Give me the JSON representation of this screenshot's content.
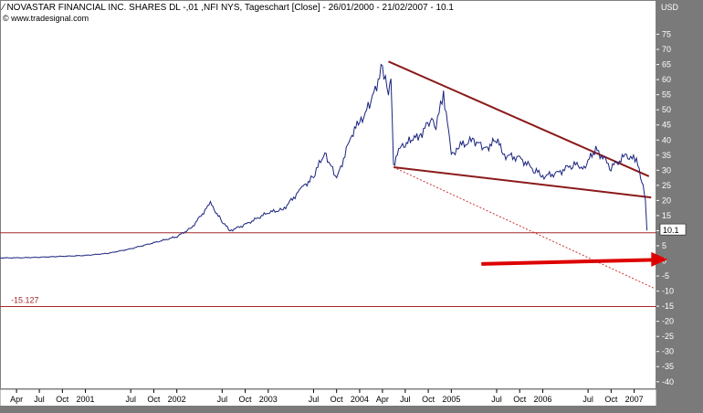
{
  "header": {
    "icon": "chart-line-icon",
    "title": "NOVASTAR FINANCIAL INC. SHARES DL -,01 ,NFI NYS, Tageschart [Close] - 26/01/2000 - 21/02/2007 - 10.1",
    "source_icon": "copyright-icon",
    "source": "www.tradesignal.com"
  },
  "chart_data": {
    "type": "line",
    "series": [
      {
        "x": [
          "2000-01-26",
          "2000-04-01",
          "2000-07-01",
          "2000-10-01",
          "2001-01-01",
          "2001-04-01",
          "2001-07-01",
          "2001-10-01",
          "2002-01-01",
          "2002-03-01",
          "2002-05-15",
          "2002-07-01",
          "2002-08-01",
          "2002-10-01",
          "2003-01-01",
          "2003-03-01",
          "2003-05-15",
          "2003-07-01",
          "2003-08-15",
          "2003-10-01",
          "2003-12-01",
          "2004-01-01",
          "2004-02-15",
          "2004-04-01",
          "2004-04-25",
          "2004-05-05",
          "2004-05-15",
          "2004-06-15",
          "2004-08-01",
          "2004-09-01",
          "2004-10-15",
          "2004-11-01",
          "2004-12-01",
          "2005-01-01",
          "2005-02-01",
          "2005-04-01",
          "2005-05-15",
          "2005-07-01",
          "2005-08-01",
          "2005-10-01",
          "2005-12-01",
          "2006-01-01",
          "2006-03-01",
          "2006-05-01",
          "2006-06-15",
          "2006-08-01",
          "2006-10-01",
          "2006-12-01",
          "2007-01-10",
          "2007-02-01",
          "2007-02-15",
          "2007-02-21"
        ],
        "values": [
          1,
          1,
          1.2,
          1.5,
          1.8,
          2.5,
          4,
          6,
          8,
          11,
          19,
          13,
          10,
          12,
          16,
          17,
          24,
          28,
          36,
          27,
          42,
          46,
          52,
          65,
          55,
          60,
          32,
          38,
          40,
          42,
          47,
          44,
          56,
          35,
          38,
          40,
          37,
          40,
          35,
          34,
          30,
          28,
          29,
          32,
          31,
          37,
          31,
          35,
          33,
          27,
          20,
          10.1
        ]
      }
    ],
    "last_value_label": "10.1",
    "value_label": "-15.127",
    "ylabel": "USD",
    "ylim": [
      -45,
      80
    ],
    "y_ticks": [
      "75",
      "70",
      "65",
      "60",
      "55",
      "50",
      "45",
      "40",
      "35",
      "30",
      "25",
      "20",
      "15",
      "10",
      "5",
      "0",
      "-5",
      "-10",
      "-15",
      "-20",
      "-25",
      "-30",
      "-35",
      "-40"
    ],
    "x_ticks": [
      {
        "label": "Apr",
        "date": "2000-04-01"
      },
      {
        "label": "Jul",
        "date": "2000-07-01"
      },
      {
        "label": "Oct",
        "date": "2000-10-01"
      },
      {
        "label": "2001",
        "date": "2001-01-01"
      },
      {
        "label": "Jul",
        "date": "2001-07-01"
      },
      {
        "label": "Oct",
        "date": "2001-10-01"
      },
      {
        "label": "2002",
        "date": "2002-01-01"
      },
      {
        "label": "Jul",
        "date": "2002-07-01"
      },
      {
        "label": "Oct",
        "date": "2002-10-01"
      },
      {
        "label": "2003",
        "date": "2003-01-01"
      },
      {
        "label": "Jul",
        "date": "2003-07-01"
      },
      {
        "label": "Oct",
        "date": "2003-10-01"
      },
      {
        "label": "2004",
        "date": "2004-01-01"
      },
      {
        "label": "Apr",
        "date": "2004-04-01"
      },
      {
        "label": "Jul",
        "date": "2004-07-01"
      },
      {
        "label": "Oct",
        "date": "2004-10-01"
      },
      {
        "label": "2005",
        "date": "2005-01-01"
      },
      {
        "label": "Jul",
        "date": "2005-07-01"
      },
      {
        "label": "Oct",
        "date": "2005-10-01"
      },
      {
        "label": "2006",
        "date": "2006-01-01"
      },
      {
        "label": "Jul",
        "date": "2006-07-01"
      },
      {
        "label": "Oct",
        "date": "2006-10-01"
      },
      {
        "label": "2007",
        "date": "2007-01-01"
      }
    ],
    "trendlines": [
      {
        "name": "upper-resistance-line",
        "color": "#8b1a1a",
        "from": {
          "x": "2004-04-25",
          "y": 66
        },
        "to": {
          "x": "2007-03-01",
          "y": 28
        }
      },
      {
        "name": "lower-support-line",
        "color": "#8b1a1a",
        "from": {
          "x": "2004-05-15",
          "y": 31
        },
        "to": {
          "x": "2007-03-10",
          "y": 21
        }
      },
      {
        "name": "dotted-projection-line",
        "color": "#cc3333",
        "from": {
          "x": "2004-05-15",
          "y": 31
        },
        "to": {
          "x": "2007-03-20",
          "y": -9
        }
      }
    ],
    "horizontal_lines": [
      {
        "name": "support-level-line",
        "value": 9.3,
        "color": "#a52a2a"
      },
      {
        "name": "lower-level-line",
        "value": -15.127,
        "color": "#a52a2a"
      }
    ],
    "arrow": {
      "color": "#dd0000",
      "from": {
        "x": "2005-05-01",
        "y": -1
      },
      "to": {
        "x": "2007-05-15",
        "y": 0.5
      }
    },
    "grid": false,
    "colors": {
      "price": "#1a237e",
      "axis_panel": "#7a7a7a",
      "label_box": "#ffffff",
      "background": "#ffffff"
    }
  }
}
